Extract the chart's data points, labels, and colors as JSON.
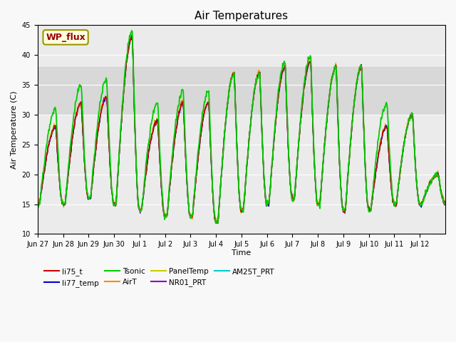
{
  "title": "Air Temperatures",
  "ylabel": "Air Temperature (C)",
  "xlabel": "Time",
  "ylim": [
    10,
    45
  ],
  "shaded_band": [
    30,
    38
  ],
  "annotation_text": "WP_flux",
  "x_tick_labels": [
    "Jun 27",
    "Jun 28",
    "Jun 29",
    "Jun 30",
    "Jul 1",
    "Jul 2",
    "Jul 3",
    "Jul 4",
    "Jul 5",
    "Jul 6",
    "Jul 7",
    "Jul 8",
    "Jul 9",
    "Jul 10",
    "Jul 11",
    "Jul 12"
  ],
  "series": {
    "li75_t": {
      "color": "#cc0000",
      "lw": 1.0
    },
    "li77_temp": {
      "color": "#0000cc",
      "lw": 1.0
    },
    "Tsonic": {
      "color": "#00cc00",
      "lw": 1.3
    },
    "AirT": {
      "color": "#ff8800",
      "lw": 1.0
    },
    "PanelTemp": {
      "color": "#cccc00",
      "lw": 1.0
    },
    "NR01_PRT": {
      "color": "#8800cc",
      "lw": 1.0
    },
    "AM25T_PRT": {
      "color": "#00cccc",
      "lw": 1.0
    }
  },
  "day_peaks": [
    28,
    32,
    33,
    43,
    29,
    32,
    32,
    37,
    37,
    38,
    39,
    38,
    38,
    28,
    30,
    20
  ],
  "day_mins": [
    15,
    15,
    16,
    15,
    14,
    13,
    13,
    12,
    14,
    15,
    16,
    15,
    14,
    14,
    15,
    15
  ],
  "tsonic_extra": [
    3,
    3,
    3,
    1,
    3,
    2,
    2,
    0,
    0,
    1,
    1,
    0,
    0,
    4,
    0,
    0
  ]
}
